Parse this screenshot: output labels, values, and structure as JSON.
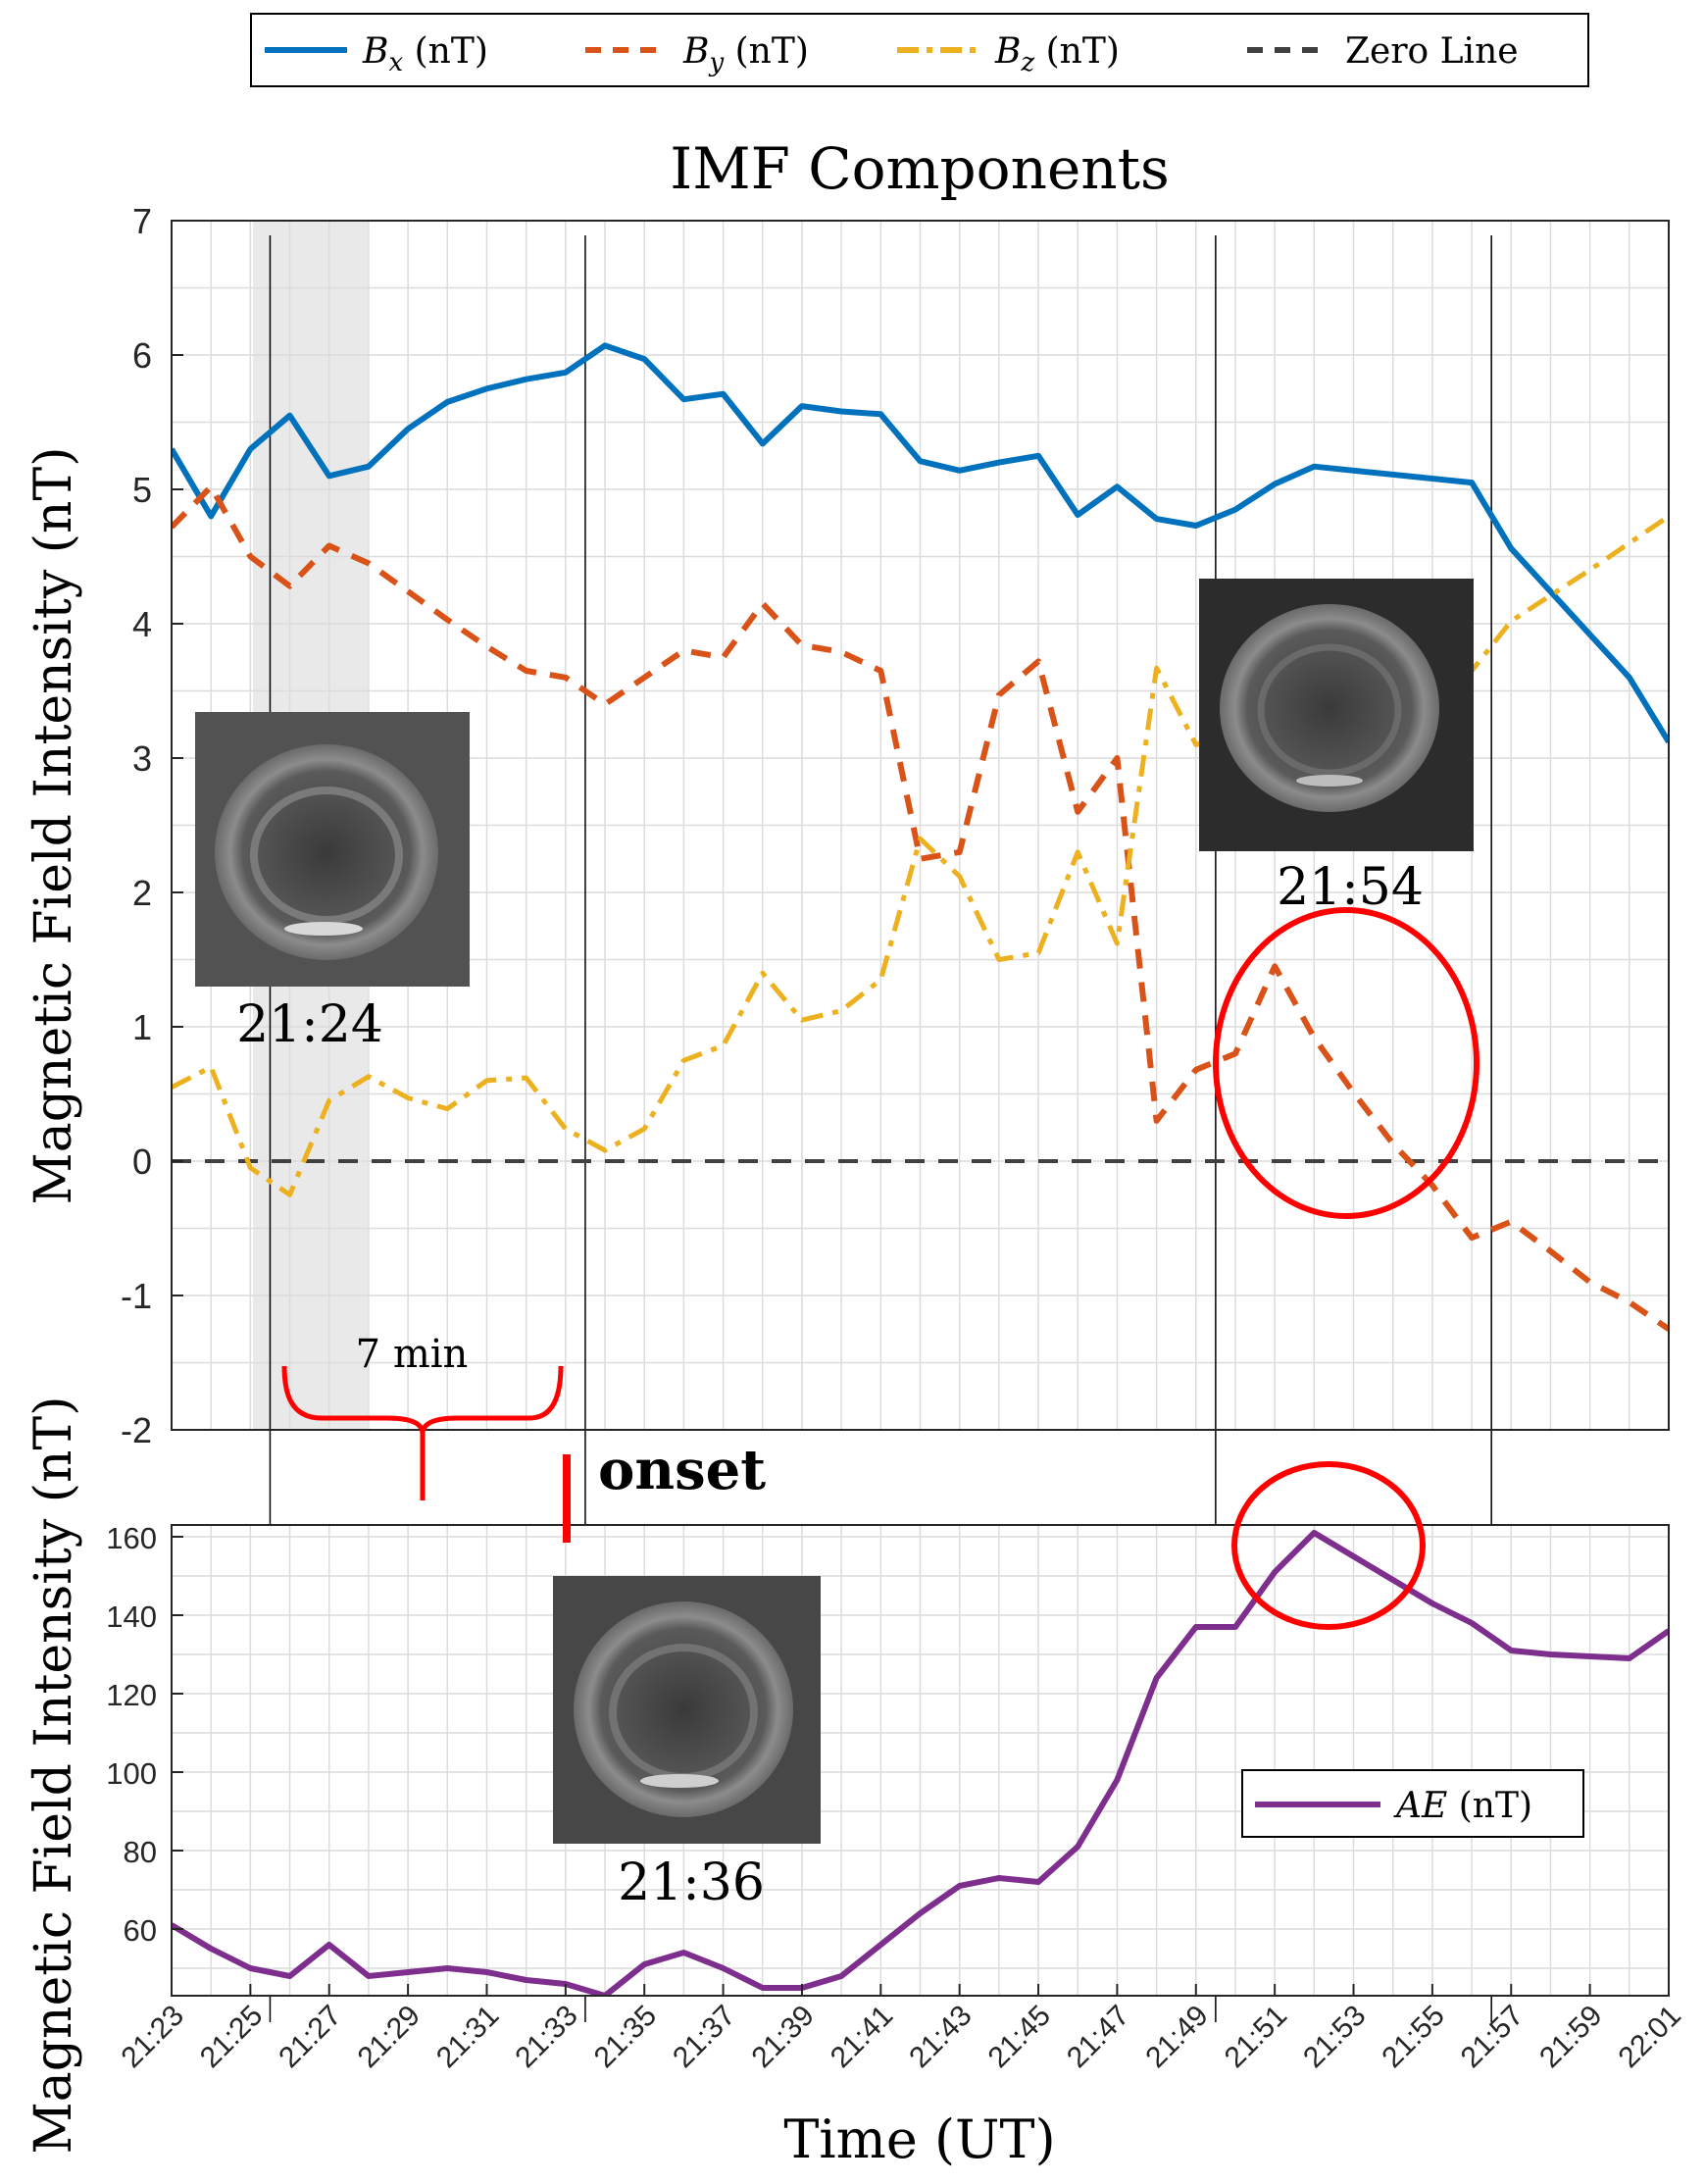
{
  "chart_data": [
    {
      "type": "line",
      "title": "IMF Components",
      "ylabel": "Magnetic Field Intensity (nT)",
      "ylim": [
        -2,
        7
      ],
      "yticks": [
        "-2",
        "-1",
        "0",
        "1",
        "2",
        "3",
        "4",
        "5",
        "6",
        "7"
      ],
      "grid": true,
      "legend_position": "top (outside)",
      "shaded_interval": [
        "21:25",
        "21:28"
      ],
      "vertical_markers": [
        "21:25:30",
        "21:33:30",
        "21:49:30",
        "21:56:30"
      ],
      "series": [
        {
          "name": "B_x (nT)",
          "color": "#0072BD",
          "style": "solid",
          "x": [
            "21:23",
            "21:24",
            "21:25",
            "21:26",
            "21:27",
            "21:28",
            "21:29",
            "21:30",
            "21:31",
            "21:32",
            "21:33",
            "21:34",
            "21:35",
            "21:36",
            "21:37",
            "21:38",
            "21:39",
            "21:40",
            "21:41",
            "21:42",
            "21:43",
            "21:44",
            "21:45",
            "21:46",
            "21:47",
            "21:48",
            "21:49",
            "21:50",
            "21:51",
            "21:52",
            "21:56",
            "21:57",
            "21:58",
            "21:59",
            "22:00",
            "22:01"
          ],
          "values": [
            5.3,
            4.8,
            5.3,
            5.55,
            5.1,
            5.17,
            5.45,
            5.65,
            5.75,
            5.82,
            5.87,
            6.07,
            5.97,
            5.67,
            5.71,
            5.34,
            5.62,
            5.58,
            5.56,
            5.21,
            5.14,
            5.2,
            5.25,
            4.81,
            5.02,
            4.78,
            4.73,
            4.85,
            5.04,
            5.17,
            5.05,
            4.56,
            4.24,
            3.92,
            3.6,
            3.12
          ]
        },
        {
          "name": "B_y (nT)",
          "color": "#D95319",
          "style": "dashed",
          "x": [
            "21:23",
            "21:24",
            "21:25",
            "21:26",
            "21:27",
            "21:28",
            "21:29",
            "21:30",
            "21:31",
            "21:32",
            "21:33",
            "21:34",
            "21:35",
            "21:36",
            "21:37",
            "21:38",
            "21:39",
            "21:40",
            "21:41",
            "21:42",
            "21:43",
            "21:44",
            "21:45",
            "21:46",
            "21:47",
            "21:48",
            "21:49",
            "21:50",
            "21:51",
            "21:52",
            "21:53",
            "21:54",
            "21:55",
            "21:56",
            "21:57",
            "21:58",
            "21:59",
            "22:00",
            "22:01"
          ],
          "values": [
            4.72,
            5.02,
            4.5,
            4.28,
            4.58,
            4.45,
            4.24,
            4.03,
            3.83,
            3.65,
            3.6,
            3.4,
            3.6,
            3.8,
            3.75,
            4.15,
            3.84,
            3.79,
            3.65,
            2.25,
            2.3,
            3.47,
            3.72,
            2.6,
            3.0,
            0.3,
            0.68,
            0.8,
            1.45,
            0.92,
            0.51,
            0.13,
            -0.18,
            -0.57,
            -0.45,
            -0.67,
            -0.9,
            -1.05,
            -1.25
          ]
        },
        {
          "name": "B_z (nT)",
          "color": "#EDB120",
          "style": "dash-dot",
          "x": [
            "21:23",
            "21:24",
            "21:25",
            "21:26",
            "21:27",
            "21:28",
            "21:29",
            "21:30",
            "21:31",
            "21:32",
            "21:33",
            "21:34",
            "21:35",
            "21:36",
            "21:37",
            "21:38",
            "21:39",
            "21:40",
            "21:41",
            "21:42",
            "21:43",
            "21:44",
            "21:45",
            "21:46",
            "21:47",
            "21:48",
            "21:49",
            "21:56",
            "21:57",
            "21:58",
            "21:59",
            "22:00",
            "22:01"
          ],
          "values": [
            0.55,
            0.7,
            -0.05,
            -0.25,
            0.45,
            0.63,
            0.47,
            0.39,
            0.6,
            0.62,
            0.24,
            0.08,
            0.24,
            0.75,
            0.86,
            1.4,
            1.05,
            1.12,
            1.35,
            2.4,
            2.12,
            1.5,
            1.55,
            2.3,
            1.62,
            3.67,
            3.1,
            3.65,
            4.02,
            4.21,
            4.4,
            4.6,
            4.8
          ]
        },
        {
          "name": "Zero Line",
          "color": "#404040",
          "style": "dashed",
          "x": [
            "21:23",
            "22:01"
          ],
          "values": [
            0,
            0
          ]
        }
      ]
    },
    {
      "type": "line",
      "xlabel": "Time (UT)",
      "ylabel": "Magnetic Field Intensity (nT)",
      "ylim": [
        43,
        163
      ],
      "yticks": [
        "60",
        "80",
        "100",
        "120",
        "140",
        "160"
      ],
      "xticks": [
        "21:23",
        "21:25",
        "21:27",
        "21:29",
        "21:31",
        "21:33",
        "21:35",
        "21:37",
        "21:39",
        "21:41",
        "21:43",
        "21:45",
        "21:47",
        "21:49",
        "21:51",
        "21:53",
        "21:55",
        "21:57",
        "21:59",
        "22:01"
      ],
      "grid": true,
      "legend_position": "bottom-right",
      "series": [
        {
          "name": "AE (nT)",
          "color": "#7E2F8E",
          "style": "solid",
          "x": [
            "21:23",
            "21:24",
            "21:25",
            "21:26",
            "21:27",
            "21:28",
            "21:29",
            "21:30",
            "21:31",
            "21:32",
            "21:33",
            "21:34",
            "21:35",
            "21:36",
            "21:37",
            "21:38",
            "21:39",
            "21:40",
            "21:41",
            "21:42",
            "21:43",
            "21:44",
            "21:45",
            "21:46",
            "21:47",
            "21:48",
            "21:49",
            "21:50",
            "21:51",
            "21:52",
            "21:53",
            "21:54",
            "21:55",
            "21:56",
            "21:57",
            "21:58",
            "21:59",
            "22:00",
            "22:01"
          ],
          "values": [
            61,
            55,
            50,
            48,
            56,
            48,
            49,
            50,
            49,
            47,
            46,
            43,
            51,
            54,
            50,
            45,
            45,
            48,
            56,
            64,
            71,
            73,
            72,
            81,
            98,
            124,
            137,
            137,
            151,
            161,
            155,
            149,
            143,
            138,
            131,
            130,
            129.5,
            129,
            136
          ]
        }
      ]
    }
  ],
  "annotations": {
    "img_time_1": "21:24",
    "img_time_2": "21:54",
    "img_time_3": "21:36",
    "brace_label": "7 min",
    "onset_label": "onset",
    "brace_color": "#ff0000",
    "circle_color": "#ff0000"
  }
}
